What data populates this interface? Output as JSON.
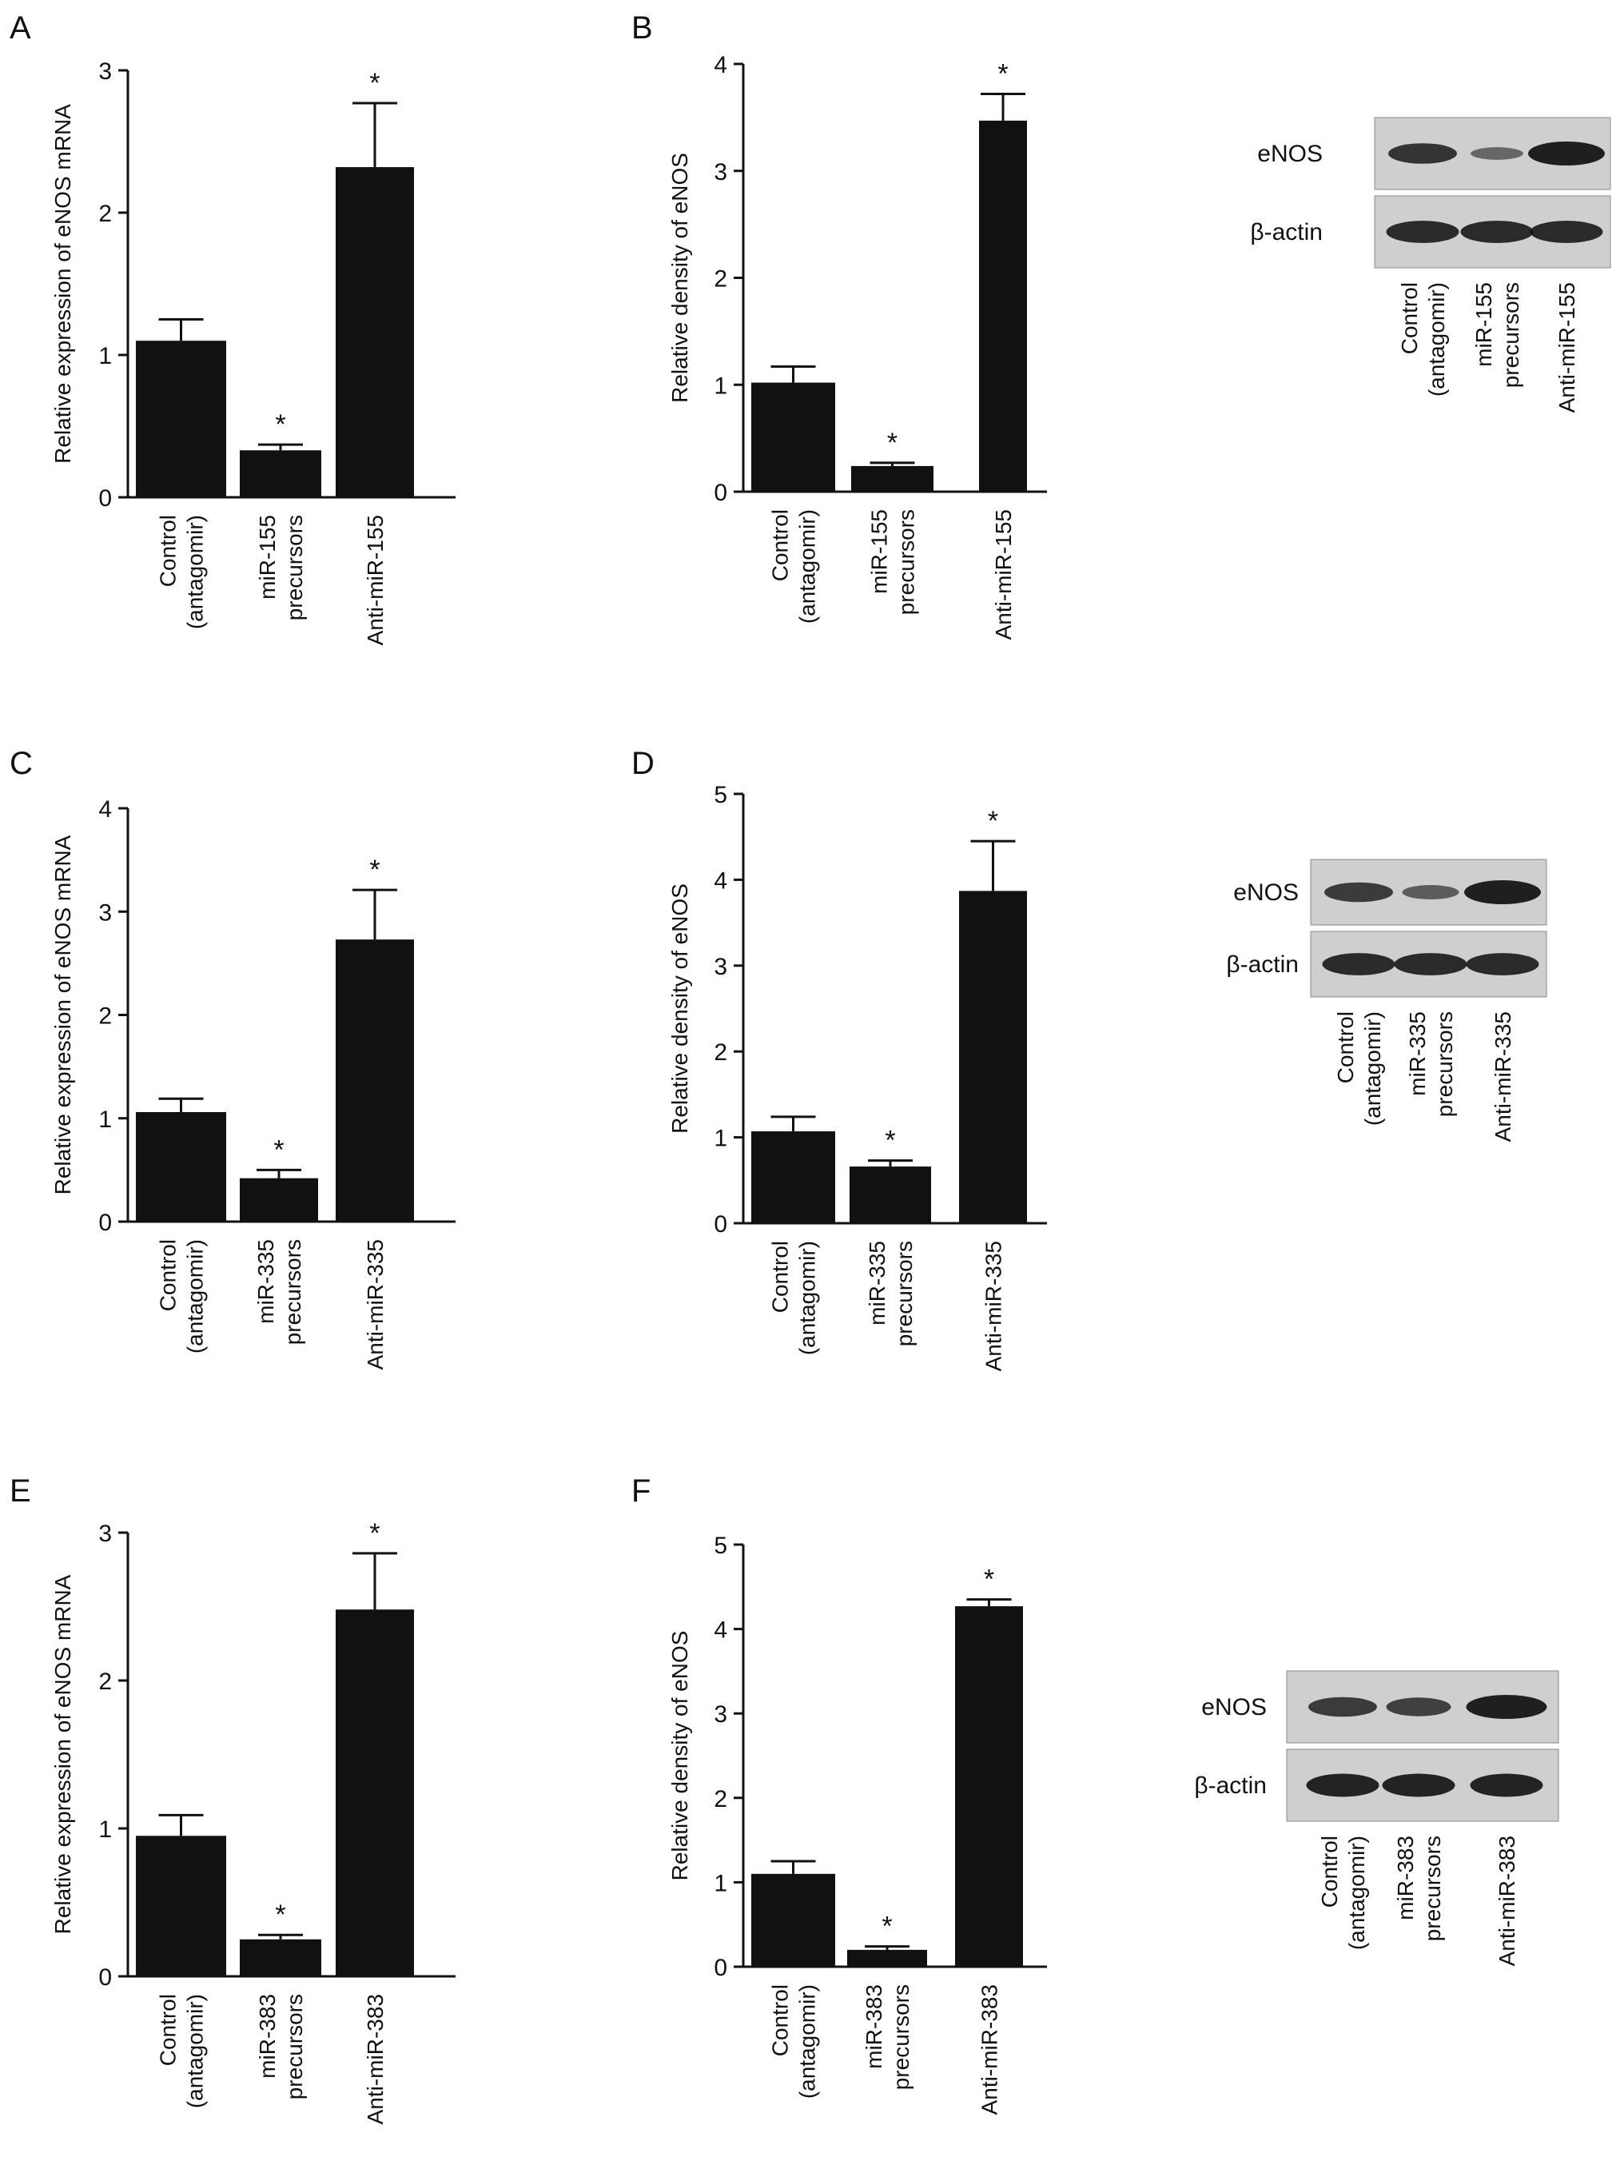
{
  "chart_data": [
    {
      "panel": "A",
      "type": "bar",
      "categories": [
        "Control\n(antagomir)",
        "miR-155\nprecursors",
        "Anti-miR-155"
      ],
      "values": [
        1.1,
        0.33,
        2.32
      ],
      "errors": [
        0.15,
        0.04,
        0.45
      ],
      "significance": [
        "",
        "*",
        "*"
      ],
      "ylabel": "Relative expression of eNOS mRNA",
      "ylim": [
        0,
        3
      ],
      "yticks": [
        "0",
        "1",
        "2",
        "3"
      ],
      "ytick_values": [
        0,
        1,
        2,
        3
      ],
      "grid": false
    },
    {
      "panel": "B",
      "type": "bar",
      "categories": [
        "Control\n(antagomir)",
        "miR-155\nprecursors",
        "Anti-miR-155"
      ],
      "values": [
        1.02,
        0.24,
        3.47
      ],
      "errors": [
        0.15,
        0.03,
        0.25
      ],
      "significance": [
        "",
        "*",
        "*"
      ],
      "ylabel": "Relative density of eNOS",
      "ylim": [
        0,
        4
      ],
      "yticks": [
        "0",
        "1",
        "2",
        "3",
        "4"
      ],
      "ytick_values": [
        0,
        1,
        2,
        3,
        4
      ],
      "grid": false
    },
    {
      "panel": "C",
      "type": "bar",
      "categories": [
        "Control\n(antagomir)",
        "miR-335\nprecursors",
        "Anti-miR-335"
      ],
      "values": [
        1.06,
        0.42,
        2.73
      ],
      "errors": [
        0.13,
        0.08,
        0.48
      ],
      "significance": [
        "",
        "*",
        "*"
      ],
      "ylabel": "Relative expression of eNOS mRNA",
      "ylim": [
        0,
        4
      ],
      "yticks": [
        "0",
        "1",
        "2",
        "3",
        "4"
      ],
      "ytick_values": [
        0,
        1,
        2,
        3,
        4
      ],
      "grid": false
    },
    {
      "panel": "D",
      "type": "bar",
      "categories": [
        "Control\n(antagomir)",
        "miR-335\nprecursors",
        "Anti-miR-335"
      ],
      "values": [
        1.07,
        0.66,
        3.87
      ],
      "errors": [
        0.17,
        0.07,
        0.58
      ],
      "significance": [
        "",
        "*",
        "*"
      ],
      "ylabel": "Relative density of eNOS",
      "ylim": [
        0,
        5
      ],
      "yticks": [
        "0",
        "1",
        "2",
        "3",
        "4",
        "5"
      ],
      "ytick_values": [
        0,
        1,
        2,
        3,
        4,
        5
      ],
      "grid": false
    },
    {
      "panel": "E",
      "type": "bar",
      "categories": [
        "Control\n(antagomir)",
        "miR-383\nprecursors",
        "Anti-miR-383"
      ],
      "values": [
        0.95,
        0.25,
        2.48
      ],
      "errors": [
        0.14,
        0.03,
        0.38
      ],
      "significance": [
        "",
        "*",
        "*"
      ],
      "ylabel": "Relative expression of eNOS mRNA",
      "ylim": [
        0,
        3
      ],
      "yticks": [
        "0",
        "1",
        "2",
        "3"
      ],
      "ytick_values": [
        0,
        1,
        2,
        3
      ],
      "grid": false
    },
    {
      "panel": "F",
      "type": "bar",
      "categories": [
        "Control\n(antagomir)",
        "miR-383\nprecursors",
        "Anti-miR-383"
      ],
      "values": [
        1.1,
        0.2,
        4.27
      ],
      "errors": [
        0.15,
        0.04,
        0.08
      ],
      "significance": [
        "",
        "*",
        "*"
      ],
      "ylabel": "Relative density of eNOS",
      "ylim": [
        0,
        5
      ],
      "yticks": [
        "0",
        "1",
        "2",
        "3",
        "4",
        "5"
      ],
      "ytick_values": [
        0,
        1,
        2,
        3,
        4,
        5
      ],
      "grid": false
    }
  ],
  "blots": [
    {
      "row_labels": [
        "eNOS",
        "β-actin"
      ],
      "lane_labels": [
        "Control\n(antagomir)",
        "miR-155\nprecursors",
        "Anti-miR-155"
      ],
      "enos_band_strength": [
        0.8,
        0.35,
        1.0
      ],
      "actin_band_strength": [
        0.9,
        0.9,
        0.9
      ]
    },
    {
      "row_labels": [
        "eNOS",
        "β-actin"
      ],
      "lane_labels": [
        "Control\n(antagomir)",
        "miR-335\nprecursors",
        "Anti-miR-335"
      ],
      "enos_band_strength": [
        0.75,
        0.45,
        1.0
      ],
      "actin_band_strength": [
        0.9,
        0.9,
        0.9
      ]
    },
    {
      "row_labels": [
        "eNOS",
        "β-actin"
      ],
      "lane_labels": [
        "Control\n(antagomir)",
        "miR-383\nprecursors",
        "Anti-miR-383"
      ],
      "enos_band_strength": [
        0.75,
        0.7,
        1.0
      ],
      "actin_band_strength": [
        0.95,
        0.95,
        0.95
      ]
    }
  ],
  "colors": {
    "bar": "#111111",
    "axis": "#111111",
    "blot_bg": "#cfcfcf",
    "band": "#151515"
  }
}
